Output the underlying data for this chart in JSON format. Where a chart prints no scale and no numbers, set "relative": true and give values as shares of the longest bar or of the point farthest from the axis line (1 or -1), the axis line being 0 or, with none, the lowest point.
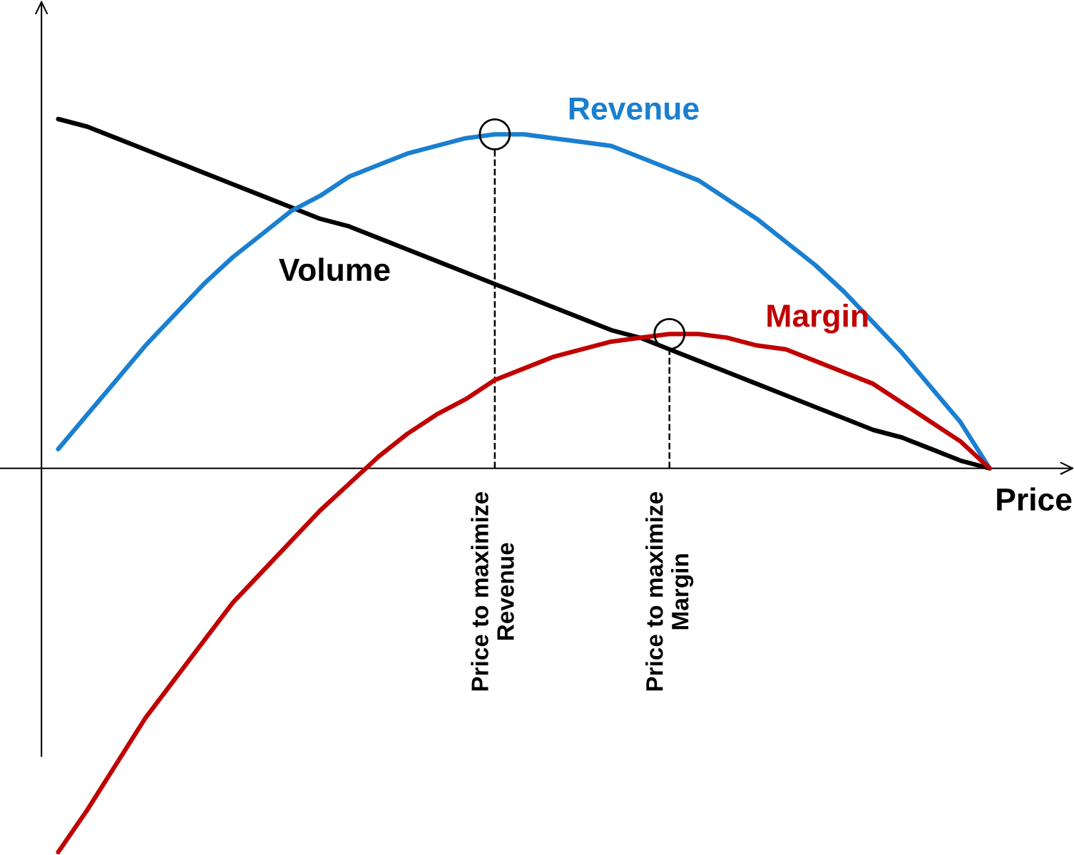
{
  "chart_data": {
    "type": "line",
    "relative": true,
    "xlabel": "Price",
    "legend": false,
    "marker": "none",
    "line_style": "solid",
    "categories": [
      null,
      null,
      null,
      null,
      null,
      null,
      null,
      null,
      null,
      null,
      null,
      null,
      null,
      null,
      null,
      null,
      null,
      null,
      null,
      null,
      null,
      null,
      null,
      null,
      null,
      null,
      null,
      null,
      null,
      null,
      null,
      null,
      null
    ],
    "series": [
      {
        "name": "Volume",
        "color": "#000000",
        "values": [
          0.91,
          0.89,
          0.86,
          0.83,
          0.8,
          0.77,
          0.74,
          0.71,
          0.68,
          0.65,
          0.63,
          0.6,
          0.57,
          0.54,
          0.51,
          0.48,
          0.45,
          0.42,
          0.39,
          0.36,
          0.34,
          0.31,
          0.28,
          0.25,
          0.22,
          0.19,
          0.16,
          0.13,
          0.1,
          0.08,
          0.05,
          0.02,
          0.0
        ]
      },
      {
        "name": "Revenue",
        "color": "#1a7fd0",
        "values": [
          0.05,
          0.14,
          0.23,
          0.32,
          0.4,
          0.48,
          0.55,
          0.61,
          0.67,
          0.71,
          0.76,
          0.79,
          0.82,
          0.84,
          0.86,
          0.87,
          0.87,
          0.86,
          0.85,
          0.84,
          0.81,
          0.78,
          0.75,
          0.7,
          0.65,
          0.59,
          0.53,
          0.46,
          0.38,
          0.3,
          0.21,
          0.12,
          0.0
        ]
      },
      {
        "name": "Margin",
        "color": "#c00000",
        "values": [
          -1.0,
          -0.89,
          -0.77,
          -0.65,
          -0.55,
          -0.45,
          -0.35,
          -0.27,
          -0.19,
          -0.11,
          -0.04,
          0.03,
          0.09,
          0.14,
          0.18,
          0.23,
          0.26,
          0.29,
          0.31,
          0.33,
          0.34,
          0.35,
          0.35,
          0.34,
          0.32,
          0.31,
          0.28,
          0.25,
          0.22,
          0.17,
          0.12,
          0.07,
          0.0
        ]
      }
    ],
    "annotations": [
      "Price to maximize\nRevenue",
      "Price to maximize\nMargin"
    ]
  }
}
